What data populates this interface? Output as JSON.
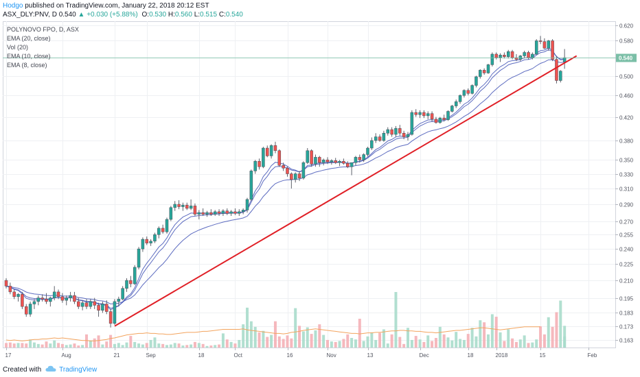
{
  "header": {
    "author": "Hodgo",
    "published_text": " published on TradingView.com, January 22, 2018 20:12 EST",
    "symbol": "ASX_DLY:PNV, D",
    "last": "0.540",
    "change": "▲ +0.030 (+5.88%)",
    "o_label": "O:",
    "o_value": "0.530",
    "h_label": "H:",
    "h_value": "0.560",
    "l_label": "L:",
    "l_value": "0.515",
    "c_label": "C:",
    "c_value": "0.540"
  },
  "legend": {
    "title": "POLYNOVO FPO, D, ASX",
    "items": [
      "EMA (20, close)",
      "Vol (20)",
      "EMA (10, close)",
      "EMA (8, close)"
    ]
  },
  "footer": {
    "created_with": "Created with",
    "brand": "TradingView"
  },
  "colors": {
    "up_candle": "#26a69a",
    "down_candle": "#ef5350",
    "up_volume": "#a8dccb",
    "down_volume": "#f4b0b6",
    "trendline": "#e01f26",
    "ema": "#3f51b5",
    "vol_ma": "#f3a35c",
    "price_tag": "#7bbfa7"
  },
  "chart_data": {
    "type": "candlestick",
    "price_axis_ticks": [
      "0.620",
      "0.580",
      "0.540",
      "0.500",
      "0.460",
      "0.420",
      "0.380",
      "0.350",
      "0.330",
      "0.310",
      "0.290",
      "0.270",
      "0.255",
      "0.240",
      "0.225",
      "0.210",
      "0.195",
      "0.183",
      "0.173",
      "0.163"
    ],
    "time_axis_ticks": [
      "17",
      "Aug",
      "21",
      "Sep",
      "18",
      "Oct",
      "16",
      "Nov",
      "13",
      "Dec",
      "18",
      "2018",
      "15",
      "Feb"
    ],
    "last_price_label": "0.540",
    "ylim": [
      0.158,
      0.63
    ],
    "candles": [
      [
        0.21,
        0.212,
        0.203,
        0.205
      ],
      [
        0.205,
        0.208,
        0.198,
        0.2
      ],
      [
        0.2,
        0.202,
        0.194,
        0.196
      ],
      [
        0.196,
        0.199,
        0.192,
        0.198
      ],
      [
        0.198,
        0.2,
        0.186,
        0.188
      ],
      [
        0.188,
        0.19,
        0.18,
        0.182
      ],
      [
        0.182,
        0.192,
        0.18,
        0.19
      ],
      [
        0.19,
        0.194,
        0.186,
        0.192
      ],
      [
        0.192,
        0.197,
        0.189,
        0.195
      ],
      [
        0.195,
        0.198,
        0.192,
        0.194
      ],
      [
        0.194,
        0.199,
        0.19,
        0.192
      ],
      [
        0.192,
        0.196,
        0.188,
        0.195
      ],
      [
        0.195,
        0.205,
        0.193,
        0.2
      ],
      [
        0.2,
        0.202,
        0.194,
        0.196
      ],
      [
        0.196,
        0.199,
        0.191,
        0.193
      ],
      [
        0.193,
        0.197,
        0.189,
        0.195
      ],
      [
        0.195,
        0.2,
        0.192,
        0.197
      ],
      [
        0.197,
        0.2,
        0.19,
        0.192
      ],
      [
        0.192,
        0.195,
        0.186,
        0.188
      ],
      [
        0.188,
        0.193,
        0.185,
        0.191
      ],
      [
        0.191,
        0.194,
        0.186,
        0.188
      ],
      [
        0.188,
        0.194,
        0.186,
        0.192
      ],
      [
        0.192,
        0.195,
        0.186,
        0.189
      ],
      [
        0.189,
        0.191,
        0.18,
        0.185
      ],
      [
        0.185,
        0.192,
        0.183,
        0.19
      ],
      [
        0.19,
        0.193,
        0.182,
        0.184
      ],
      [
        0.184,
        0.186,
        0.172,
        0.175
      ],
      [
        0.175,
        0.194,
        0.174,
        0.192
      ],
      [
        0.192,
        0.196,
        0.188,
        0.194
      ],
      [
        0.194,
        0.205,
        0.193,
        0.203
      ],
      [
        0.203,
        0.212,
        0.2,
        0.21
      ],
      [
        0.21,
        0.214,
        0.204,
        0.207
      ],
      [
        0.207,
        0.224,
        0.206,
        0.222
      ],
      [
        0.222,
        0.242,
        0.22,
        0.24
      ],
      [
        0.24,
        0.252,
        0.237,
        0.25
      ],
      [
        0.25,
        0.253,
        0.244,
        0.246
      ],
      [
        0.246,
        0.25,
        0.243,
        0.248
      ],
      [
        0.248,
        0.257,
        0.246,
        0.255
      ],
      [
        0.255,
        0.264,
        0.251,
        0.262
      ],
      [
        0.262,
        0.266,
        0.256,
        0.258
      ],
      [
        0.258,
        0.274,
        0.256,
        0.272
      ],
      [
        0.272,
        0.288,
        0.27,
        0.286
      ],
      [
        0.286,
        0.294,
        0.282,
        0.29
      ],
      [
        0.29,
        0.295,
        0.284,
        0.287
      ],
      [
        0.287,
        0.292,
        0.282,
        0.289
      ],
      [
        0.289,
        0.292,
        0.283,
        0.285
      ],
      [
        0.285,
        0.296,
        0.283,
        0.288
      ],
      [
        0.288,
        0.291,
        0.276,
        0.278
      ],
      [
        0.278,
        0.283,
        0.272,
        0.28
      ],
      [
        0.28,
        0.285,
        0.276,
        0.278
      ],
      [
        0.278,
        0.282,
        0.275,
        0.28
      ],
      [
        0.28,
        0.284,
        0.276,
        0.278
      ],
      [
        0.278,
        0.283,
        0.276,
        0.281
      ],
      [
        0.281,
        0.284,
        0.276,
        0.279
      ],
      [
        0.279,
        0.284,
        0.276,
        0.282
      ],
      [
        0.282,
        0.285,
        0.277,
        0.279
      ],
      [
        0.279,
        0.283,
        0.276,
        0.281
      ],
      [
        0.281,
        0.285,
        0.277,
        0.279
      ],
      [
        0.279,
        0.284,
        0.276,
        0.281
      ],
      [
        0.281,
        0.285,
        0.278,
        0.283
      ],
      [
        0.283,
        0.298,
        0.28,
        0.296
      ],
      [
        0.296,
        0.336,
        0.294,
        0.334
      ],
      [
        0.334,
        0.35,
        0.33,
        0.348
      ],
      [
        0.348,
        0.352,
        0.336,
        0.34
      ],
      [
        0.34,
        0.37,
        0.338,
        0.368
      ],
      [
        0.368,
        0.372,
        0.354,
        0.356
      ],
      [
        0.356,
        0.374,
        0.352,
        0.372
      ],
      [
        0.372,
        0.378,
        0.36,
        0.364
      ],
      [
        0.364,
        0.366,
        0.34,
        0.342
      ],
      [
        0.342,
        0.346,
        0.334,
        0.338
      ],
      [
        0.338,
        0.34,
        0.326,
        0.33
      ],
      [
        0.33,
        0.332,
        0.31,
        0.322
      ],
      [
        0.322,
        0.332,
        0.318,
        0.33
      ],
      [
        0.33,
        0.334,
        0.32,
        0.324
      ],
      [
        0.324,
        0.348,
        0.322,
        0.346
      ],
      [
        0.346,
        0.368,
        0.344,
        0.364
      ],
      [
        0.364,
        0.366,
        0.34,
        0.344
      ],
      [
        0.344,
        0.358,
        0.34,
        0.354
      ],
      [
        0.354,
        0.356,
        0.34,
        0.346
      ],
      [
        0.346,
        0.352,
        0.342,
        0.35
      ],
      [
        0.35,
        0.354,
        0.344,
        0.347
      ],
      [
        0.347,
        0.351,
        0.343,
        0.349
      ],
      [
        0.349,
        0.353,
        0.344,
        0.346
      ],
      [
        0.346,
        0.35,
        0.341,
        0.348
      ],
      [
        0.348,
        0.352,
        0.343,
        0.345
      ],
      [
        0.345,
        0.348,
        0.338,
        0.34
      ],
      [
        0.34,
        0.343,
        0.328,
        0.346
      ],
      [
        0.346,
        0.356,
        0.342,
        0.354
      ],
      [
        0.354,
        0.358,
        0.346,
        0.35
      ],
      [
        0.35,
        0.36,
        0.347,
        0.358
      ],
      [
        0.358,
        0.37,
        0.355,
        0.368
      ],
      [
        0.368,
        0.385,
        0.365,
        0.38
      ],
      [
        0.38,
        0.392,
        0.376,
        0.386
      ],
      [
        0.386,
        0.39,
        0.378,
        0.38
      ],
      [
        0.38,
        0.396,
        0.378,
        0.392
      ],
      [
        0.392,
        0.402,
        0.388,
        0.398
      ],
      [
        0.398,
        0.402,
        0.386,
        0.39
      ],
      [
        0.39,
        0.404,
        0.386,
        0.4
      ],
      [
        0.4,
        0.406,
        0.388,
        0.392
      ],
      [
        0.392,
        0.396,
        0.382,
        0.386
      ],
      [
        0.386,
        0.394,
        0.38,
        0.39
      ],
      [
        0.39,
        0.432,
        0.388,
        0.428
      ],
      [
        0.428,
        0.434,
        0.42,
        0.424
      ],
      [
        0.424,
        0.432,
        0.418,
        0.428
      ],
      [
        0.428,
        0.432,
        0.418,
        0.422
      ],
      [
        0.422,
        0.43,
        0.416,
        0.426
      ],
      [
        0.426,
        0.43,
        0.412,
        0.416
      ],
      [
        0.416,
        0.42,
        0.408,
        0.41
      ],
      [
        0.41,
        0.42,
        0.408,
        0.418
      ],
      [
        0.418,
        0.424,
        0.412,
        0.415
      ],
      [
        0.415,
        0.432,
        0.413,
        0.43
      ],
      [
        0.43,
        0.442,
        0.428,
        0.44
      ],
      [
        0.44,
        0.452,
        0.436,
        0.448
      ],
      [
        0.448,
        0.462,
        0.444,
        0.46
      ],
      [
        0.46,
        0.472,
        0.456,
        0.47
      ],
      [
        0.47,
        0.474,
        0.46,
        0.464
      ],
      [
        0.464,
        0.482,
        0.462,
        0.48
      ],
      [
        0.48,
        0.5,
        0.476,
        0.498
      ],
      [
        0.498,
        0.514,
        0.494,
        0.512
      ],
      [
        0.512,
        0.516,
        0.502,
        0.506
      ],
      [
        0.506,
        0.526,
        0.504,
        0.524
      ],
      [
        0.524,
        0.552,
        0.52,
        0.548
      ],
      [
        0.548,
        0.552,
        0.536,
        0.54
      ],
      [
        0.54,
        0.55,
        0.53,
        0.546
      ],
      [
        0.546,
        0.552,
        0.538,
        0.542
      ],
      [
        0.542,
        0.558,
        0.538,
        0.554
      ],
      [
        0.554,
        0.558,
        0.536,
        0.54
      ],
      [
        0.54,
        0.548,
        0.532,
        0.536
      ],
      [
        0.536,
        0.546,
        0.532,
        0.544
      ],
      [
        0.544,
        0.556,
        0.538,
        0.552
      ],
      [
        0.552,
        0.556,
        0.536,
        0.54
      ],
      [
        0.54,
        0.552,
        0.536,
        0.548
      ],
      [
        0.548,
        0.584,
        0.546,
        0.58
      ],
      [
        0.58,
        0.592,
        0.572,
        0.578
      ],
      [
        0.578,
        0.586,
        0.56,
        0.562
      ],
      [
        0.562,
        0.582,
        0.556,
        0.58
      ],
      [
        0.58,
        0.584,
        0.532,
        0.536
      ],
      [
        0.536,
        0.544,
        0.484,
        0.49
      ],
      [
        0.49,
        0.512,
        0.486,
        0.51
      ],
      [
        0.53,
        0.56,
        0.515,
        0.54
      ]
    ],
    "volumes": [
      0.9,
      1.0,
      0.8,
      0.9,
      0.9,
      0.8,
      1.6,
      1.0,
      0.7,
      0.6,
      1.2,
      0.8,
      1.4,
      0.9,
      0.7,
      0.5,
      0.6,
      0.8,
      0.4,
      0.5,
      2.6,
      1.4,
      1.8,
      2.4,
      0.6,
      1.2,
      2.5,
      0.7,
      0.9,
      0.5,
      1.0,
      2.3,
      1.1,
      0.8,
      0.6,
      0.9,
      1.5,
      2.0,
      0.8,
      0.7,
      0.5,
      0.6,
      0.9,
      0.8,
      0.4,
      0.5,
      0.6,
      1.1,
      0.9,
      0.7,
      0.3,
      0.4,
      0.5,
      0.6,
      2.8,
      1.6,
      1.1,
      0.8,
      1.5,
      4.6,
      7.9,
      5.2,
      4.1,
      3.0,
      3.3,
      2.1,
      2.5,
      5.2,
      2.2,
      1.7,
      2.4,
      1.8,
      7.8,
      4.3,
      3.2,
      4.0,
      2.7,
      3.4,
      4.6,
      2.5,
      1.5,
      1.2,
      1.1,
      1.3,
      1.7,
      2.6,
      1.9,
      1.6,
      5.7,
      1.3,
      2.2,
      3.0,
      1.5,
      2.9,
      3.6,
      0.8,
      2.6,
      11.0,
      2.1,
      0.7,
      3.9,
      1.5,
      2.3,
      1.6,
      1.1,
      2.4,
      1.3,
      1.9,
      4.1,
      2.6,
      2.0,
      1.4,
      3.1,
      1.7,
      1.5,
      2.7,
      3.9,
      2.2,
      5.4,
      5.0,
      2.6,
      6.6,
      6.1,
      3.0,
      1.3,
      3.6,
      1.8,
      1.1,
      1.6,
      2.4,
      0.9,
      1.0,
      1.6,
      4.2,
      2.6,
      6.0,
      4.1,
      7.0,
      9.3,
      4.3
    ],
    "volume_max": 11.0,
    "last_volume_visible": 2.2,
    "volume_ma": [
      1.5,
      1.4,
      1.5,
      1.4,
      1.3,
      1.4,
      1.5,
      1.6,
      1.6,
      1.7,
      1.7,
      1.8,
      1.9,
      1.8,
      1.9,
      1.8,
      1.7,
      1.6,
      1.5,
      1.4,
      1.4,
      1.3,
      1.3,
      1.4,
      1.5,
      1.6,
      1.8,
      1.9,
      2.1,
      2.3,
      2.5,
      2.6,
      2.7,
      2.8,
      2.8,
      2.9,
      2.8,
      2.8,
      2.7,
      2.7,
      2.6,
      2.6,
      2.7,
      2.8,
      2.9,
      3.0,
      3.0,
      3.0,
      3.1,
      3.2,
      3.2,
      3.3,
      3.4,
      3.5,
      3.6,
      3.6,
      3.6,
      3.6,
      3.6,
      3.7,
      3.5,
      3.4,
      3.3,
      3.2,
      3.1,
      3.0,
      2.9,
      2.8,
      2.8,
      2.7,
      2.8,
      3.0,
      3.1,
      3.2,
      3.4,
      3.5,
      3.6,
      3.7,
      3.6,
      3.5,
      3.4,
      3.3,
      3.2,
      3.1,
      3.0,
      2.9,
      2.8,
      2.8,
      2.7,
      2.8,
      2.9,
      2.9,
      3.0,
      3.0,
      3.1,
      3.2,
      3.3,
      3.3,
      3.4,
      3.4,
      3.3,
      3.3,
      3.2,
      3.2,
      3.1,
      3.0,
      3.0,
      2.9,
      3.0,
      3.1,
      3.2,
      3.3,
      3.4,
      3.4,
      3.5,
      3.6,
      3.7,
      3.8,
      3.9,
      3.9,
      3.8,
      3.7,
      3.6,
      3.5,
      3.6,
      3.7,
      3.8,
      3.9,
      4.0,
      4.1,
      4.1,
      4.1,
      4.1,
      4.1
    ],
    "trendline": {
      "from": {
        "index": 27,
        "price": 0.173
      },
      "to": {
        "index": 142,
        "price": 0.544
      }
    }
  }
}
